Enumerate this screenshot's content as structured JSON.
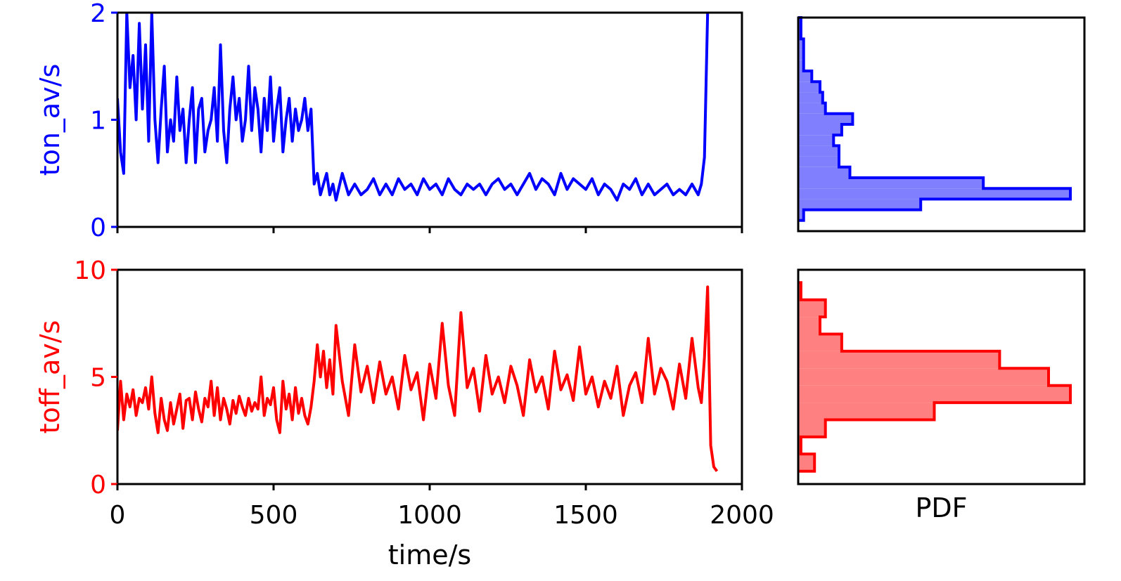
{
  "chart_data": [
    {
      "type": "line",
      "panel": "top-left",
      "xlabel": "",
      "ylabel": "ton_av/s",
      "xlim": [
        0,
        2000
      ],
      "ylim": [
        0,
        2
      ],
      "yticks": [
        "0",
        "1",
        "2"
      ],
      "color": "#0000ff",
      "series": [
        {
          "x": [
            0,
            10,
            20,
            30,
            40,
            50,
            60,
            70,
            80,
            90,
            100,
            110,
            120,
            130,
            140,
            150,
            160,
            170,
            180,
            190,
            200,
            210,
            220,
            230,
            240,
            250,
            260,
            270,
            280,
            290,
            300,
            310,
            320,
            330,
            340,
            350,
            360,
            370,
            380,
            390,
            400,
            410,
            420,
            430,
            440,
            450,
            460,
            470,
            480,
            490,
            500,
            510,
            520,
            530,
            540,
            550,
            560,
            570,
            580,
            590,
            600,
            610,
            620,
            630,
            640,
            650,
            660,
            670,
            680,
            690,
            700,
            720,
            740,
            760,
            780,
            800,
            820,
            840,
            860,
            880,
            900,
            920,
            940,
            960,
            980,
            1000,
            1020,
            1040,
            1060,
            1080,
            1100,
            1120,
            1140,
            1160,
            1180,
            1200,
            1220,
            1240,
            1260,
            1280,
            1300,
            1320,
            1340,
            1360,
            1380,
            1400,
            1420,
            1440,
            1460,
            1480,
            1500,
            1520,
            1540,
            1560,
            1580,
            1600,
            1620,
            1640,
            1660,
            1680,
            1700,
            1720,
            1740,
            1760,
            1780,
            1800,
            1820,
            1840,
            1850,
            1860,
            1870,
            1880,
            1890
          ],
          "y": [
            1.2,
            0.7,
            0.5,
            2.0,
            1.3,
            1.6,
            1.0,
            1.9,
            1.1,
            1.7,
            0.8,
            2.0,
            1.0,
            0.6,
            1.1,
            1.5,
            0.7,
            1.0,
            0.8,
            1.4,
            0.9,
            1.1,
            0.6,
            1.0,
            1.3,
            0.6,
            1.1,
            1.2,
            0.7,
            0.9,
            1.0,
            1.3,
            0.8,
            1.7,
            0.9,
            0.6,
            1.1,
            1.4,
            1.0,
            1.2,
            0.8,
            1.0,
            1.5,
            0.9,
            1.3,
            1.1,
            0.7,
            1.2,
            0.9,
            1.4,
            0.8,
            1.1,
            1.3,
            0.7,
            1.0,
            1.2,
            0.8,
            1.1,
            0.9,
            1.0,
            1.2,
            0.9,
            1.1,
            0.4,
            0.5,
            0.3,
            0.4,
            0.5,
            0.3,
            0.4,
            0.25,
            0.5,
            0.3,
            0.4,
            0.3,
            0.35,
            0.45,
            0.3,
            0.4,
            0.3,
            0.45,
            0.35,
            0.4,
            0.3,
            0.45,
            0.35,
            0.4,
            0.3,
            0.45,
            0.35,
            0.3,
            0.4,
            0.35,
            0.4,
            0.3,
            0.4,
            0.45,
            0.35,
            0.4,
            0.3,
            0.4,
            0.5,
            0.35,
            0.45,
            0.4,
            0.3,
            0.5,
            0.35,
            0.45,
            0.4,
            0.35,
            0.45,
            0.3,
            0.4,
            0.35,
            0.25,
            0.4,
            0.35,
            0.45,
            0.3,
            0.4,
            0.3,
            0.35,
            0.4,
            0.3,
            0.35,
            0.3,
            0.4,
            0.35,
            0.3,
            0.4,
            0.65,
            2.0
          ]
        }
      ]
    },
    {
      "type": "line",
      "panel": "bottom-left",
      "xlabel": "time/s",
      "ylabel": "toff_av/s",
      "xlim": [
        0,
        2000
      ],
      "ylim": [
        0,
        10
      ],
      "xticks": [
        "0",
        "500",
        "1000",
        "1500",
        "2000"
      ],
      "yticks": [
        "0",
        "5",
        "10"
      ],
      "color": "#ff0000",
      "series": [
        {
          "x": [
            0,
            10,
            20,
            30,
            40,
            50,
            60,
            70,
            80,
            90,
            100,
            110,
            120,
            130,
            140,
            150,
            160,
            170,
            180,
            190,
            200,
            210,
            220,
            230,
            240,
            250,
            260,
            270,
            280,
            290,
            300,
            310,
            320,
            330,
            340,
            350,
            360,
            370,
            380,
            390,
            400,
            410,
            420,
            430,
            440,
            450,
            460,
            470,
            480,
            490,
            500,
            510,
            520,
            530,
            540,
            550,
            560,
            570,
            580,
            590,
            600,
            610,
            620,
            630,
            640,
            650,
            660,
            670,
            680,
            690,
            700,
            720,
            740,
            760,
            780,
            800,
            820,
            840,
            860,
            880,
            900,
            920,
            940,
            960,
            980,
            1000,
            1020,
            1040,
            1060,
            1080,
            1100,
            1120,
            1140,
            1160,
            1180,
            1200,
            1220,
            1240,
            1260,
            1280,
            1300,
            1320,
            1340,
            1360,
            1380,
            1400,
            1420,
            1440,
            1460,
            1480,
            1500,
            1520,
            1540,
            1560,
            1580,
            1600,
            1620,
            1640,
            1660,
            1680,
            1700,
            1720,
            1740,
            1760,
            1780,
            1800,
            1820,
            1840,
            1860,
            1870,
            1880,
            1890,
            1900,
            1910,
            1920
          ],
          "y": [
            2.5,
            4.8,
            3.0,
            4.2,
            3.6,
            4.4,
            3.2,
            4.0,
            3.8,
            4.5,
            3.5,
            5.0,
            3.3,
            2.4,
            4.0,
            3.0,
            2.5,
            3.8,
            2.8,
            3.5,
            4.2,
            2.6,
            3.9,
            4.0,
            3.0,
            4.3,
            3.5,
            2.9,
            4.0,
            3.6,
            4.8,
            3.2,
            4.5,
            3.0,
            4.0,
            3.5,
            2.8,
            3.9,
            3.3,
            4.1,
            3.6,
            3.2,
            4.0,
            3.4,
            3.8,
            3.5,
            5.0,
            3.2,
            4.0,
            3.7,
            4.5,
            3.0,
            2.4,
            4.8,
            3.5,
            4.2,
            3.0,
            4.5,
            3.3,
            4.0,
            3.2,
            2.8,
            3.6,
            4.8,
            6.5,
            5.0,
            6.2,
            4.5,
            5.8,
            4.2,
            7.4,
            4.8,
            3.2,
            6.5,
            4.3,
            5.5,
            3.8,
            5.7,
            4.2,
            5.0,
            3.5,
            6.0,
            4.4,
            5.2,
            3.0,
            5.6,
            4.0,
            7.5,
            4.6,
            3.2,
            8.0,
            4.5,
            5.4,
            3.4,
            6.0,
            4.2,
            5.0,
            3.8,
            5.5,
            4.6,
            3.2,
            5.8,
            4.3,
            5.0,
            3.5,
            6.2,
            4.4,
            5.1,
            3.9,
            6.4,
            4.2,
            5.0,
            3.6,
            4.8,
            4.0,
            5.5,
            3.2,
            4.6,
            5.2,
            3.8,
            6.8,
            4.2,
            5.4,
            4.8,
            3.5,
            5.6,
            4.0,
            6.8,
            4.5,
            3.8,
            5.9,
            9.2,
            1.8,
            0.8,
            0.6
          ]
        }
      ]
    },
    {
      "type": "bar",
      "panel": "top-right",
      "orientation": "horizontal",
      "xlabel": "",
      "ylabel": "",
      "ylim": [
        0,
        2
      ],
      "color": "#0000ff",
      "fill": "#8080ff",
      "bin_edges": [
        0.1,
        0.2,
        0.3,
        0.4,
        0.5,
        0.6,
        0.7,
        0.8,
        0.9,
        1.0,
        1.1,
        1.2,
        1.3,
        1.4,
        1.5,
        1.6,
        1.7,
        1.8,
        1.9,
        2.0
      ],
      "values": [
        0.02,
        0.45,
        1.0,
        0.68,
        0.19,
        0.15,
        0.15,
        0.13,
        0.16,
        0.2,
        0.1,
        0.09,
        0.08,
        0.05,
        0.02,
        0.02,
        0.02,
        0.01,
        0.01
      ]
    },
    {
      "type": "bar",
      "panel": "bottom-right",
      "orientation": "horizontal",
      "xlabel": "PDF",
      "ylabel": "",
      "ylim": [
        0,
        10
      ],
      "color": "#ff0000",
      "fill": "#ff8080",
      "bin_edges": [
        0.6,
        1.4,
        2.2,
        3.0,
        3.8,
        4.6,
        5.4,
        6.2,
        7.0,
        7.8,
        8.6,
        9.4
      ],
      "values": [
        0.06,
        0.01,
        0.1,
        0.5,
        1.0,
        0.92,
        0.74,
        0.16,
        0.08,
        0.1,
        0.01
      ]
    }
  ]
}
